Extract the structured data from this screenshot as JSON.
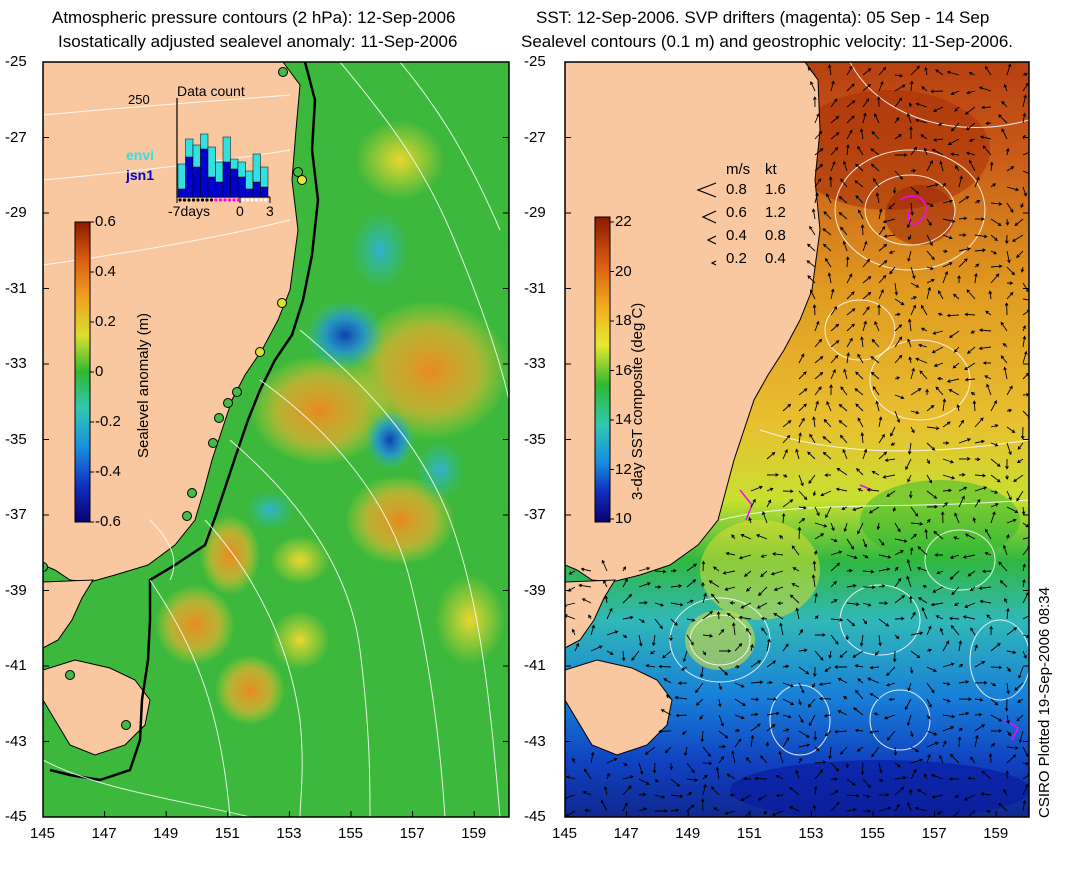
{
  "left_panel": {
    "title_line1": "Atmospheric pressure contours (2 hPa): 12-Sep-2006",
    "title_line2": "Isostatically adjusted sealevel anomaly: 11-Sep-2006",
    "colorbar": {
      "label": "Sealevel anomaly (m)",
      "ticks": [
        "0.6",
        "0.4",
        "0.2",
        "0",
        "-0.2",
        "-0.4",
        "-0.6"
      ]
    },
    "data_count": {
      "title": "Data count",
      "ymax_label": "250",
      "legend": [
        {
          "name": "envi",
          "color": "#33e0e0"
        },
        {
          "name": "jsn1",
          "color": "#0000cc"
        }
      ],
      "x_labels": [
        "-7days",
        "0",
        "3"
      ]
    }
  },
  "right_panel": {
    "title_line1": "SST: 12-Sep-2006. SVP drifters (magenta): 05 Sep - 14 Sep",
    "title_line2": "Sealevel contours (0.1 m) and geostrophic velocity: 11-Sep-2006.",
    "colorbar": {
      "label": "3-day SST composite (deg C)",
      "ticks": [
        "22",
        "20",
        "18",
        "16",
        "14",
        "12",
        "10"
      ]
    },
    "velocity_legend": {
      "header_ms": "m/s",
      "header_kt": "kt",
      "rows": [
        {
          "ms": "0.8",
          "kt": "1.6"
        },
        {
          "ms": "0.6",
          "kt": "1.2"
        },
        {
          "ms": "0.4",
          "kt": "0.8"
        },
        {
          "ms": "0.2",
          "kt": "0.4"
        }
      ]
    }
  },
  "axes": {
    "lat_ticks": [
      "-25",
      "-27",
      "-29",
      "-31",
      "-33",
      "-35",
      "-37",
      "-39",
      "-41",
      "-43",
      "-45"
    ],
    "lon_ticks": [
      "145",
      "147",
      "149",
      "151",
      "153",
      "155",
      "157",
      "159"
    ]
  },
  "credit": "CSIRO Plotted 19-Sep-2006 08:34",
  "colors": {
    "land": "#f9c8a0",
    "coast": "#000000",
    "contour": "#ffffff",
    "drifter": "#ff00ff",
    "tide_gauge": "#44bb44"
  }
}
